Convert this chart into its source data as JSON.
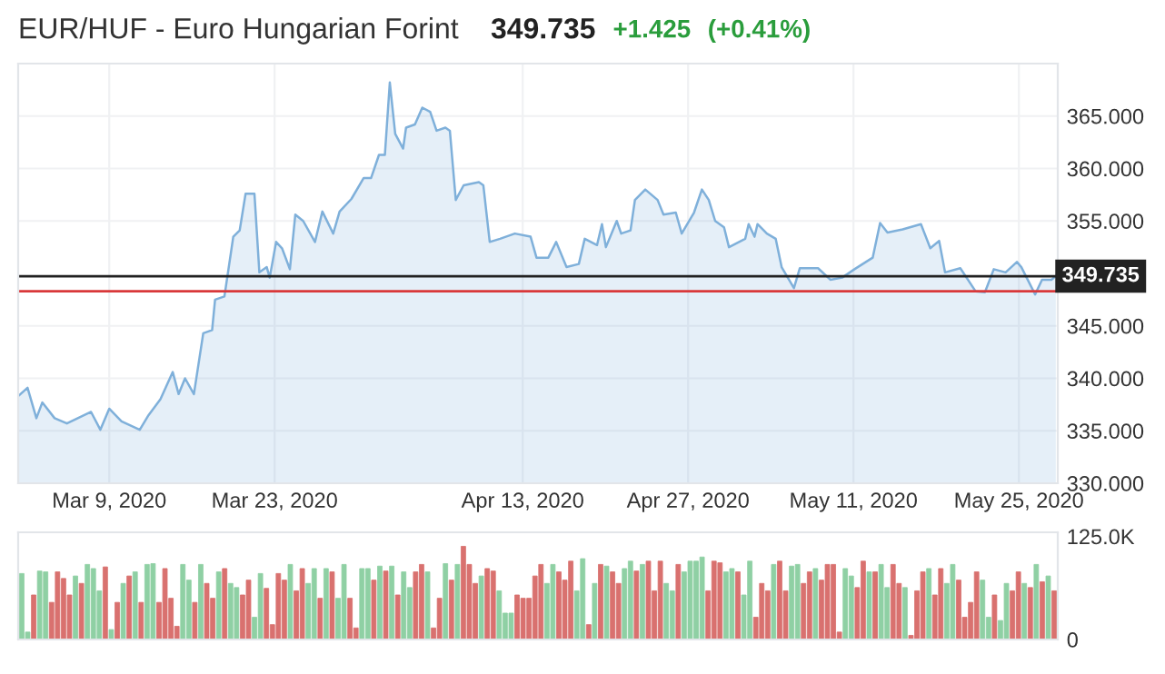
{
  "chart_data": [
    {
      "type": "area",
      "title": "EUR/HUF - Euro Hungarian Forint",
      "annotations": [
        "349.735",
        "+1.425",
        "(+0.41%)"
      ],
      "x": [
        "2020-03-01T07:00",
        "2020-03-02T02:00",
        "2020-03-02T20:00",
        "2020-03-03T08:00",
        "2020-03-04T09:00",
        "2020-03-05T10:00",
        "2020-03-07T11:00",
        "2020-03-08T06:00",
        "2020-03-09T00:00",
        "2020-03-10T01:00",
        "2020-03-11T14:00",
        "2020-03-12T08:00",
        "2020-03-13T08:00",
        "2020-03-14T09:00",
        "2020-03-14T21:00",
        "2020-03-15T10:00",
        "2020-03-16T04:00",
        "2020-03-16T23:00",
        "2020-03-17T17:00",
        "2020-03-17T23:00",
        "2020-03-18T18:00",
        "2020-03-19T12:00",
        "2020-03-20T01:00",
        "2020-03-20T13:00",
        "2020-03-21T07:00",
        "2020-03-21T17:00",
        "2020-03-22T08:00",
        "2020-03-22T14:00",
        "2020-03-23T03:00",
        "2020-03-23T15:00",
        "2020-03-24T07:00",
        "2020-03-24T18:00",
        "2020-03-25T10:00",
        "2020-03-26T10:00",
        "2020-03-27T01:00",
        "2020-03-27T23:00",
        "2020-03-28T12:00",
        "2020-03-29T12:00",
        "2020-03-30T13:00",
        "2020-03-31T04:00",
        "2020-03-31T20:00",
        "2020-04-01T08:00",
        "2020-04-01T18:00",
        "2020-04-02T05:00",
        "2020-04-02T21:00",
        "2020-04-03T03:00",
        "2020-04-03T21:00",
        "2020-04-04T12:00",
        "2020-04-05T04:00",
        "2020-04-05T17:00",
        "2020-04-06T11:00",
        "2020-04-06T20:00",
        "2020-04-07T08:00",
        "2020-04-08T00:00",
        "2020-04-09T07:00",
        "2020-04-09T16:00",
        "2020-04-10T05:00",
        "2020-04-11T02:00",
        "2020-04-12T08:00",
        "2020-04-13T16:00",
        "2020-04-14T04:00",
        "2020-04-15T04:00",
        "2020-04-15T20:00",
        "2020-04-16T17:00",
        "2020-04-17T18:00",
        "2020-04-18T06:00",
        "2020-04-19T07:00",
        "2020-04-19T17:00",
        "2020-04-20T01:00",
        "2020-04-20T23:00",
        "2020-04-21T08:00",
        "2020-04-22T03:00",
        "2020-04-22T12:00",
        "2020-04-23T09:00",
        "2020-04-24T10:00",
        "2020-04-24T22:00",
        "2020-04-25T23:00",
        "2020-04-26T11:00",
        "2020-04-27T12:00",
        "2020-04-28T04:00",
        "2020-04-28T18:00",
        "2020-04-29T07:00",
        "2020-04-30T01:00",
        "2020-04-30T11:00",
        "2020-05-01T20:00",
        "2020-05-02T03:00",
        "2020-05-02T15:00",
        "2020-05-02T21:00",
        "2020-05-03T16:00",
        "2020-05-04T10:00",
        "2020-05-04T22:00",
        "2020-05-05T23:00",
        "2020-05-06T11:00",
        "2020-05-08T00:00",
        "2020-05-09T01:00",
        "2020-05-10T01:00",
        "2020-05-11T02:00",
        "2020-05-12T15:00",
        "2020-05-13T06:00",
        "2020-05-13T21:00",
        "2020-05-15T04:00",
        "2020-05-16T17:00",
        "2020-05-17T12:00",
        "2020-05-18T06:00",
        "2020-05-18T18:00",
        "2020-05-20T01:00",
        "2020-05-21T08:00",
        "2020-05-22T03:00",
        "2020-05-22T21:00",
        "2020-05-23T21:00",
        "2020-05-24T20:00",
        "2020-05-25T05:00",
        "2020-05-26T09:00",
        "2020-05-26T23:00",
        "2020-05-27T18:00",
        "2020-05-28T03:00"
      ],
      "series": [
        {
          "color": "#7fb0da",
          "values": [
            338.3,
            339.1,
            336.2,
            337.7,
            336.2,
            335.7,
            336.8,
            335.1,
            337.1,
            335.9,
            335.1,
            336.5,
            338.0,
            340.6,
            338.5,
            340.0,
            338.5,
            344.3,
            344.6,
            347.5,
            347.8,
            353.5,
            354.1,
            357.6,
            357.6,
            350.1,
            350.6,
            349.6,
            353.0,
            352.4,
            350.4,
            355.6,
            355.0,
            353.0,
            355.9,
            353.8,
            355.9,
            357.1,
            359.1,
            359.1,
            361.3,
            361.3,
            368.2,
            363.3,
            361.9,
            363.9,
            364.2,
            365.8,
            365.4,
            363.6,
            363.9,
            363.6,
            357.0,
            358.4,
            358.7,
            358.4,
            353.0,
            353.3,
            353.8,
            353.5,
            351.5,
            351.5,
            353.0,
            350.6,
            350.9,
            353.3,
            352.7,
            354.7,
            352.5,
            355.0,
            353.8,
            354.1,
            357.0,
            358.0,
            357.0,
            355.6,
            355.8,
            353.8,
            355.8,
            358.0,
            357.0,
            355.0,
            354.4,
            352.5,
            353.3,
            354.7,
            353.5,
            354.7,
            353.8,
            353.3,
            350.6,
            348.6,
            350.5,
            350.5,
            349.4,
            349.6,
            350.4,
            351.5,
            354.8,
            353.9,
            354.2,
            354.7,
            352.4,
            353.1,
            350.1,
            350.5,
            348.3,
            348.2,
            350.4,
            350.1,
            351.1,
            350.6,
            348.0,
            349.4,
            349.4,
            349.735
          ]
        }
      ],
      "xlim": [
        "2020-03-01T07:00",
        "2020-05-28T07:00"
      ],
      "xticks": [
        {
          "value": "2020-03-09",
          "label": "Mar 9, 2020"
        },
        {
          "value": "2020-03-23",
          "label": "Mar 23, 2020"
        },
        {
          "value": "2020-04-13",
          "label": "Apr 13, 2020"
        },
        {
          "value": "2020-04-27",
          "label": "Apr 27, 2020"
        },
        {
          "value": "2020-05-11",
          "label": "May 11, 2020"
        },
        {
          "value": "2020-05-25",
          "label": "May 25, 2020"
        }
      ],
      "ylim": [
        330,
        370
      ],
      "yticks": [
        {
          "value": 330,
          "label": "330.000"
        },
        {
          "value": 335,
          "label": "335.000"
        },
        {
          "value": 340,
          "label": "340.000"
        },
        {
          "value": 345,
          "label": "345.000"
        },
        {
          "value": 355,
          "label": "355.000"
        },
        {
          "value": 360,
          "label": "360.000"
        },
        {
          "value": 365,
          "label": "365.000"
        }
      ],
      "ref_lines": [
        {
          "axis": "y",
          "value": 349.735,
          "label": "349.735",
          "color": "#222222"
        },
        {
          "axis": "y",
          "value": 348.31,
          "color": "#d9383a"
        }
      ],
      "grid": true
    },
    {
      "type": "bar",
      "categories": [
        null,
        null,
        null,
        null,
        null,
        null,
        null,
        null,
        null,
        null,
        null,
        null,
        null,
        null,
        null,
        null,
        null,
        null,
        null,
        null,
        null,
        null,
        null,
        null,
        null,
        null,
        null,
        null,
        null,
        null,
        null,
        null,
        null,
        null,
        null,
        null,
        null,
        null,
        null,
        null,
        null,
        null,
        null,
        null,
        null,
        null,
        null,
        null,
        null,
        null,
        null,
        null,
        null,
        null,
        null,
        null,
        null,
        null,
        null,
        null,
        null,
        null,
        null,
        null,
        null,
        null,
        null,
        null,
        null,
        null,
        null,
        null,
        null,
        null,
        null,
        null,
        null,
        null,
        null,
        null,
        null,
        null,
        null,
        null,
        null,
        null,
        null,
        null,
        null,
        null,
        null,
        null,
        null,
        null,
        null,
        null,
        null,
        null,
        null,
        null,
        null,
        null,
        null,
        null,
        null,
        null,
        null,
        null,
        null,
        null,
        null,
        null,
        null,
        null,
        null,
        null,
        null,
        null,
        null,
        null,
        null,
        null,
        null,
        null,
        null,
        null,
        null,
        null,
        null,
        null,
        null,
        null,
        null,
        null,
        null,
        null,
        null,
        null,
        null,
        null,
        null,
        null,
        null,
        null,
        null,
        null,
        null,
        null,
        null,
        null,
        null,
        null,
        null,
        null,
        null,
        null,
        null,
        null,
        null,
        null,
        null,
        null,
        null,
        null,
        null,
        null,
        null,
        null,
        null,
        null,
        null,
        null,
        null,
        null
      ],
      "values": [
        80000,
        9000,
        54000,
        83000,
        82000,
        45000,
        82000,
        74000,
        54000,
        77000,
        68000,
        91000,
        86000,
        59000,
        88000,
        12000,
        45000,
        68000,
        77000,
        82000,
        45000,
        91000,
        92000,
        45000,
        86000,
        50000,
        16000,
        91000,
        72000,
        45000,
        91000,
        68000,
        50000,
        82000,
        86000,
        68000,
        63000,
        54000,
        72000,
        27000,
        80000,
        62000,
        18000,
        80000,
        72000,
        91000,
        59000,
        86000,
        68000,
        86000,
        50000,
        86000,
        82000,
        50000,
        91000,
        50000,
        14000,
        86000,
        86000,
        72000,
        89000,
        83000,
        89000,
        54000,
        82000,
        63000,
        82000,
        91000,
        82000,
        14000,
        50000,
        92000,
        72000,
        91000,
        113000,
        91000,
        68000,
        77000,
        86000,
        83000,
        59000,
        32000,
        32000,
        54000,
        50000,
        50000,
        77000,
        91000,
        68000,
        91000,
        82000,
        72000,
        95000,
        59000,
        98000,
        18000,
        68000,
        91000,
        89000,
        82000,
        68000,
        86000,
        95000,
        83000,
        91000,
        95000,
        59000,
        95000,
        68000,
        59000,
        91000,
        82000,
        95000,
        95000,
        100000,
        59000,
        95000,
        93000,
        82000,
        86000,
        82000,
        54000,
        95000,
        27000,
        68000,
        59000,
        91000,
        95000,
        59000,
        89000,
        91000,
        68000,
        82000,
        86000,
        72000,
        91000,
        91000,
        9000,
        86000,
        77000,
        63000,
        95000,
        82000,
        82000,
        91000,
        63000,
        91000,
        68000,
        63000,
        5000,
        59000,
        82000,
        86000,
        54000,
        86000,
        68000,
        91000,
        72000,
        27000,
        45000,
        82000,
        72000,
        27000,
        54000,
        23000,
        68000,
        59000,
        82000,
        68000,
        63000,
        91000,
        70000,
        77000,
        59000
      ],
      "colors": [
        "#8fd0a4",
        "#8fd0a4",
        "#d9716f",
        "#8fd0a4",
        "#8fd0a4",
        "#d9716f",
        "#d9716f",
        "#d9716f",
        "#d9716f",
        "#8fd0a4",
        "#d9716f",
        "#8fd0a4",
        "#8fd0a4",
        "#8fd0a4",
        "#d9716f",
        "#8fd0a4",
        "#d9716f",
        "#8fd0a4",
        "#d9716f",
        "#8fd0a4",
        "#d9716f",
        "#8fd0a4",
        "#8fd0a4",
        "#d9716f",
        "#d9716f",
        "#d9716f",
        "#d9716f",
        "#8fd0a4",
        "#8fd0a4",
        "#d9716f",
        "#8fd0a4",
        "#d9716f",
        "#d9716f",
        "#8fd0a4",
        "#d9716f",
        "#8fd0a4",
        "#8fd0a4",
        "#d9716f",
        "#d9716f",
        "#8fd0a4",
        "#8fd0a4",
        "#d9716f",
        "#d9716f",
        "#d9716f",
        "#d9716f",
        "#8fd0a4",
        "#d9716f",
        "#d9716f",
        "#8fd0a4",
        "#8fd0a4",
        "#d9716f",
        "#8fd0a4",
        "#d9716f",
        "#8fd0a4",
        "#8fd0a4",
        "#d9716f",
        "#d9716f",
        "#8fd0a4",
        "#8fd0a4",
        "#d9716f",
        "#8fd0a4",
        "#d9716f",
        "#8fd0a4",
        "#d9716f",
        "#8fd0a4",
        "#8fd0a4",
        "#d9716f",
        "#d9716f",
        "#8fd0a4",
        "#d9716f",
        "#d9716f",
        "#8fd0a4",
        "#d9716f",
        "#8fd0a4",
        "#d9716f",
        "#d9716f",
        "#d9716f",
        "#8fd0a4",
        "#d9716f",
        "#d9716f",
        "#8fd0a4",
        "#8fd0a4",
        "#8fd0a4",
        "#d9716f",
        "#d9716f",
        "#d9716f",
        "#d9716f",
        "#d9716f",
        "#8fd0a4",
        "#8fd0a4",
        "#d9716f",
        "#d9716f",
        "#d9716f",
        "#8fd0a4",
        "#8fd0a4",
        "#d9716f",
        "#8fd0a4",
        "#d9716f",
        "#8fd0a4",
        "#d9716f",
        "#d9716f",
        "#8fd0a4",
        "#8fd0a4",
        "#d9716f",
        "#8fd0a4",
        "#d9716f",
        "#d9716f",
        "#d9716f",
        "#8fd0a4",
        "#8fd0a4",
        "#d9716f",
        "#8fd0a4",
        "#8fd0a4",
        "#8fd0a4",
        "#8fd0a4",
        "#d9716f",
        "#d9716f",
        "#d9716f",
        "#8fd0a4",
        "#8fd0a4",
        "#d9716f",
        "#8fd0a4",
        "#8fd0a4",
        "#d9716f",
        "#d9716f",
        "#d9716f",
        "#8fd0a4",
        "#d9716f",
        "#d9716f",
        "#8fd0a4",
        "#8fd0a4",
        "#d9716f",
        "#d9716f",
        "#8fd0a4",
        "#d9716f",
        "#d9716f",
        "#d9716f",
        "#d9716f",
        "#8fd0a4",
        "#8fd0a4",
        "#d9716f",
        "#d9716f",
        "#8fd0a4",
        "#d9716f",
        "#8fd0a4",
        "#8fd0a4",
        "#d9716f",
        "#d9716f",
        "#8fd0a4",
        "#d9716f",
        "#d9716f",
        "#d9716f",
        "#8fd0a4",
        "#d9716f",
        "#d9716f",
        "#8fd0a4",
        "#8fd0a4",
        "#d9716f",
        "#d9716f",
        "#d9716f",
        "#d9716f",
        "#8fd0a4",
        "#8fd0a4",
        "#d9716f",
        "#8fd0a4",
        "#8fd0a4",
        "#d9716f",
        "#d9716f",
        "#8fd0a4",
        "#d9716f",
        "#8fd0a4",
        "#d9716f",
        "#8fd0a4",
        "#d9716f"
      ],
      "ylim": [
        0,
        130000
      ],
      "yticks": [
        0,
        {
          "value": 125000,
          "label": "125.0K"
        }
      ],
      "tick_labels": "y"
    }
  ]
}
